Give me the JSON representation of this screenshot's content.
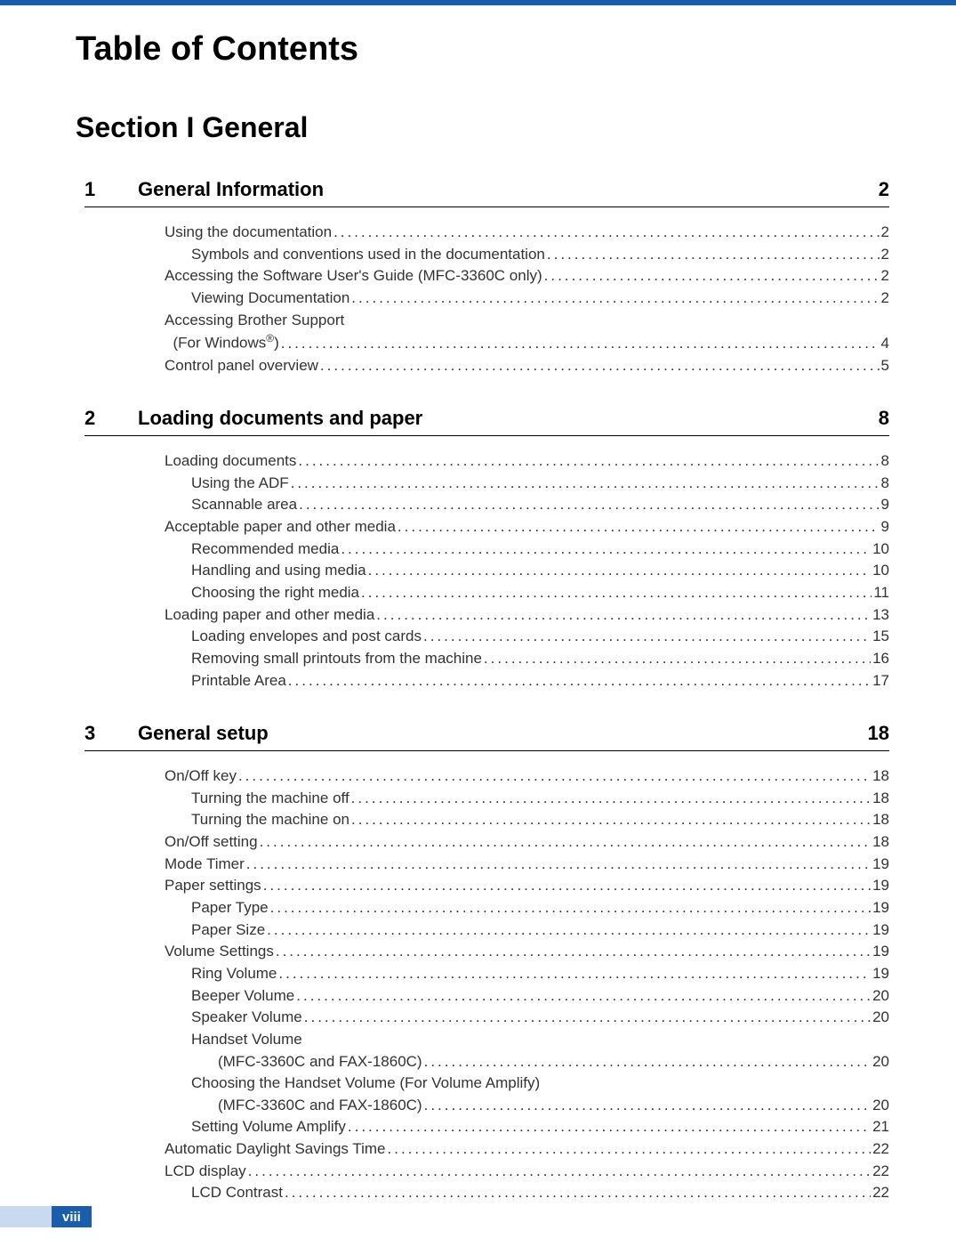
{
  "colors": {
    "topbar": "#1a5dab",
    "pageStripe": "#c9d9ef",
    "pageBlock": "#1a5dab",
    "text": "#333333",
    "black": "#000000",
    "background": "#ffffff"
  },
  "typography": {
    "mainTitle_pt": 38,
    "sectionTitle_pt": 32,
    "chapterHeader_pt": 22,
    "entry_pt": 17,
    "fontFamily": "Arial"
  },
  "mainTitle": "Table of Contents",
  "sectionTitle": "Section I   General",
  "pageNumber": "viii",
  "chapters": [
    {
      "num": "1",
      "title": "General Information",
      "page": "2",
      "entries": [
        {
          "level": 0,
          "text": "Using the documentation",
          "page": "2"
        },
        {
          "level": 1,
          "text": "Symbols and conventions used in the documentation",
          "page": "2"
        },
        {
          "level": 0,
          "text": "Accessing the Software User's Guide (MFC-3360C only)",
          "page": "2"
        },
        {
          "level": 1,
          "text": "Viewing Documentation",
          "page": "2"
        },
        {
          "level": 0,
          "text": "Accessing Brother Support",
          "noPage": true
        },
        {
          "level": 0,
          "textHtml": "  (For Windows<sup>®</sup>)",
          "page": "4",
          "continuation": true
        },
        {
          "level": 0,
          "text": "Control panel overview",
          "page": "5"
        }
      ]
    },
    {
      "num": "2",
      "title": "Loading documents and paper",
      "page": "8",
      "entries": [
        {
          "level": 0,
          "text": "Loading documents",
          "page": "8"
        },
        {
          "level": 1,
          "text": "Using the ADF",
          "page": "8"
        },
        {
          "level": 1,
          "text": "Scannable area",
          "page": "9"
        },
        {
          "level": 0,
          "text": "Acceptable paper and other media",
          "page": "9"
        },
        {
          "level": 1,
          "text": "Recommended media",
          "page": "10"
        },
        {
          "level": 1,
          "text": "Handling and using media",
          "page": "10"
        },
        {
          "level": 1,
          "text": "Choosing the right media",
          "page": "11"
        },
        {
          "level": 0,
          "text": "Loading paper and other media",
          "page": "13"
        },
        {
          "level": 1,
          "text": "Loading envelopes and post cards",
          "page": "15"
        },
        {
          "level": 1,
          "text": "Removing small printouts from the machine",
          "page": "16"
        },
        {
          "level": 1,
          "text": "Printable Area",
          "page": "17"
        }
      ]
    },
    {
      "num": "3",
      "title": "General setup",
      "page": "18",
      "entries": [
        {
          "level": 0,
          "text": "On/Off key",
          "page": "18"
        },
        {
          "level": 1,
          "text": "Turning the machine off",
          "page": "18"
        },
        {
          "level": 1,
          "text": "Turning the machine on",
          "page": "18"
        },
        {
          "level": 0,
          "text": "On/Off setting",
          "page": "18"
        },
        {
          "level": 0,
          "text": "Mode Timer",
          "page": "19"
        },
        {
          "level": 0,
          "text": "Paper settings",
          "page": "19"
        },
        {
          "level": 1,
          "text": "Paper Type",
          "page": "19"
        },
        {
          "level": 1,
          "text": "Paper Size",
          "page": "19"
        },
        {
          "level": 0,
          "text": "Volume Settings",
          "page": "19"
        },
        {
          "level": 1,
          "text": "Ring Volume",
          "page": "19"
        },
        {
          "level": 1,
          "text": "Beeper Volume",
          "page": "20"
        },
        {
          "level": 1,
          "text": "Speaker Volume",
          "page": "20"
        },
        {
          "level": 1,
          "text": "Handset Volume",
          "noPage": true
        },
        {
          "level": 2,
          "text": "(MFC-3360C and FAX-1860C)",
          "page": "20",
          "continuation": true
        },
        {
          "level": 1,
          "text": "Choosing the Handset Volume (For Volume Amplify)",
          "noPage": true
        },
        {
          "level": 2,
          "text": "(MFC-3360C and FAX-1860C)",
          "page": "20",
          "continuation": true
        },
        {
          "level": 1,
          "text": "Setting Volume Amplify",
          "page": "21"
        },
        {
          "level": 0,
          "text": "Automatic Daylight Savings Time",
          "page": "22"
        },
        {
          "level": 0,
          "text": "LCD display",
          "page": "22"
        },
        {
          "level": 1,
          "text": "LCD Contrast",
          "page": "22"
        }
      ]
    }
  ]
}
